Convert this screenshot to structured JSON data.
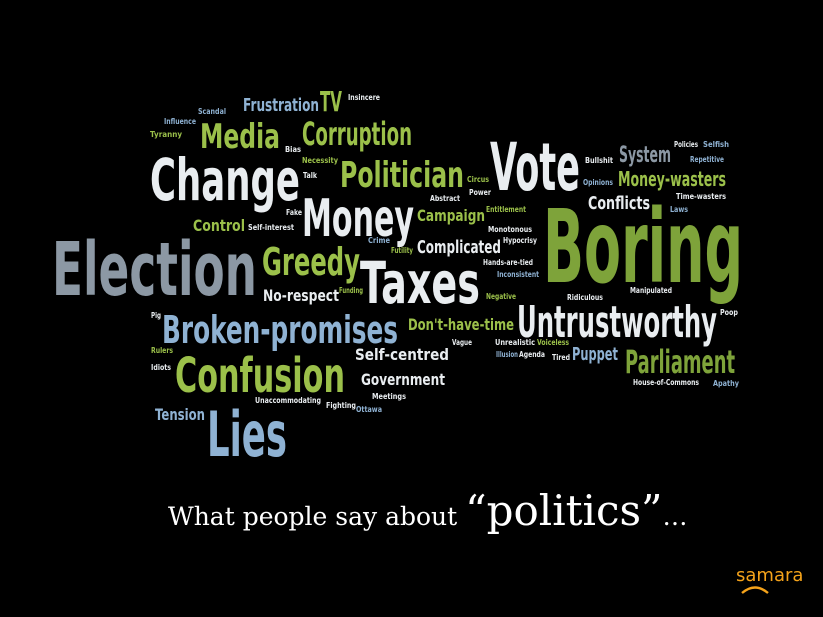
{
  "colors": {
    "background": "#000000",
    "green": "#7ea33a",
    "lightgreen": "#9bc04a",
    "white": "#e9edf0",
    "blue": "#8fb2d3",
    "grey": "#8c98a4",
    "logo": "#f5a31a"
  },
  "words": [
    {
      "text": "Election",
      "color": "grey"
    },
    {
      "text": "Boring",
      "color": "green"
    },
    {
      "text": "Change",
      "color": "white"
    },
    {
      "text": "Vote",
      "color": "white"
    },
    {
      "text": "Taxes",
      "color": "white"
    },
    {
      "text": "Money",
      "color": "white"
    },
    {
      "text": "Confusion",
      "color": "lightgreen"
    },
    {
      "text": "Lies",
      "color": "blue"
    },
    {
      "text": "Broken-promises",
      "color": "blue"
    },
    {
      "text": "Untrustworthy",
      "color": "white"
    },
    {
      "text": "Politician",
      "color": "lightgreen"
    },
    {
      "text": "Greedy",
      "color": "lightgreen"
    },
    {
      "text": "Media",
      "color": "lightgreen"
    },
    {
      "text": "Corruption",
      "color": "lightgreen"
    },
    {
      "text": "Parliament",
      "color": "green"
    },
    {
      "text": "Frustration",
      "color": "blue"
    },
    {
      "text": "TV",
      "color": "lightgreen"
    },
    {
      "text": "Insincere",
      "color": "white"
    },
    {
      "text": "Scandal",
      "color": "blue"
    },
    {
      "text": "Influence",
      "color": "blue"
    },
    {
      "text": "Tyranny",
      "color": "lightgreen"
    },
    {
      "text": "Bias",
      "color": "white"
    },
    {
      "text": "Necessity",
      "color": "lightgreen"
    },
    {
      "text": "Talk",
      "color": "white"
    },
    {
      "text": "Circus",
      "color": "lightgreen"
    },
    {
      "text": "Power",
      "color": "white"
    },
    {
      "text": "Abstract",
      "color": "white"
    },
    {
      "text": "Bullshit",
      "color": "white"
    },
    {
      "text": "Opinions",
      "color": "blue"
    },
    {
      "text": "System",
      "color": "grey"
    },
    {
      "text": "Policies",
      "color": "white"
    },
    {
      "text": "Selfish",
      "color": "blue"
    },
    {
      "text": "Repetitive",
      "color": "blue"
    },
    {
      "text": "Money-wasters",
      "color": "lightgreen"
    },
    {
      "text": "Conflicts",
      "color": "white"
    },
    {
      "text": "Time-wasters",
      "color": "white"
    },
    {
      "text": "Laws",
      "color": "blue"
    },
    {
      "text": "Campaign",
      "color": "lightgreen"
    },
    {
      "text": "Entitlement",
      "color": "lightgreen"
    },
    {
      "text": "Control",
      "color": "lightgreen"
    },
    {
      "text": "Self-interest",
      "color": "white"
    },
    {
      "text": "Fake",
      "color": "white"
    },
    {
      "text": "Crime",
      "color": "blue"
    },
    {
      "text": "Futility",
      "color": "lightgreen"
    },
    {
      "text": "Complicated",
      "color": "white"
    },
    {
      "text": "Monotonous",
      "color": "white"
    },
    {
      "text": "Hypocrisy",
      "color": "white"
    },
    {
      "text": "Hands-are-tied",
      "color": "white"
    },
    {
      "text": "Inconsistent",
      "color": "blue"
    },
    {
      "text": "No-respect",
      "color": "white"
    },
    {
      "text": "Funding",
      "color": "lightgreen"
    },
    {
      "text": "Negative",
      "color": "lightgreen"
    },
    {
      "text": "Ridiculous",
      "color": "white"
    },
    {
      "text": "Manipulated",
      "color": "white"
    },
    {
      "text": "Pig",
      "color": "white"
    },
    {
      "text": "Poop",
      "color": "white"
    },
    {
      "text": "Don't-have-time",
      "color": "lightgreen"
    },
    {
      "text": "Rulers",
      "color": "lightgreen"
    },
    {
      "text": "Idiots",
      "color": "white"
    },
    {
      "text": "Self-centred",
      "color": "white"
    },
    {
      "text": "Vague",
      "color": "white"
    },
    {
      "text": "Unrealistic",
      "color": "white"
    },
    {
      "text": "Voiceless",
      "color": "lightgreen"
    },
    {
      "text": "Illusion",
      "color": "blue"
    },
    {
      "text": "Agenda",
      "color": "white"
    },
    {
      "text": "Tired",
      "color": "white"
    },
    {
      "text": "Puppet",
      "color": "blue"
    },
    {
      "text": "Government",
      "color": "white"
    },
    {
      "text": "Meetings",
      "color": "white"
    },
    {
      "text": "House-of-Commons",
      "color": "white"
    },
    {
      "text": "Apathy",
      "color": "blue"
    },
    {
      "text": "Tension",
      "color": "blue"
    },
    {
      "text": "Unaccommodating",
      "color": "white"
    },
    {
      "text": "Fighting",
      "color": "white"
    },
    {
      "text": "Ottawa",
      "color": "blue"
    }
  ],
  "caption": {
    "prefix": "What people say about ",
    "keyword": "“politics”",
    "suffix": "…"
  },
  "logo": {
    "text": "samara"
  }
}
